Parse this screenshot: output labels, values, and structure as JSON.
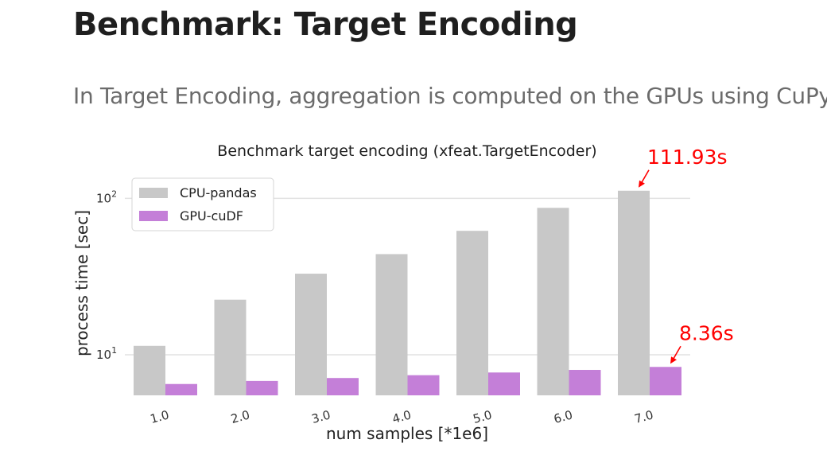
{
  "slide": {
    "title": "Benchmark: Target Encoding",
    "subtitle": "In Target Encoding, aggregation is computed on the GPUs using CuPy."
  },
  "colors": {
    "cpu": "#c8c8c8",
    "gpu": "#c47fd8",
    "annotation": "#ff0000",
    "grid": "#e2e2e2"
  },
  "chart_data": {
    "type": "bar",
    "title": "Benchmark target encoding (xfeat.TargetEncoder)",
    "xlabel": "num samples [*1e6]",
    "ylabel": "process time [sec]",
    "yscale": "log",
    "ylim": [
      5.5,
      130
    ],
    "yticks": [
      {
        "value": 10,
        "base": "10",
        "exp": "1"
      },
      {
        "value": 100,
        "base": "10",
        "exp": "2"
      }
    ],
    "grid": true,
    "legend_position": "top-left",
    "categories": [
      "1.0",
      "2.0",
      "3.0",
      "4.0",
      "5.0",
      "6.0",
      "7.0"
    ],
    "series": [
      {
        "name": "CPU-pandas",
        "values": [
          11.4,
          22.5,
          33.0,
          44.0,
          62.0,
          87.0,
          111.93
        ]
      },
      {
        "name": "GPU-cuDF",
        "values": [
          6.5,
          6.8,
          7.1,
          7.4,
          7.7,
          8.0,
          8.36
        ]
      }
    ],
    "annotations": [
      {
        "text": "111.93s",
        "series": 0,
        "category": 6
      },
      {
        "text": "8.36s",
        "series": 1,
        "category": 6
      }
    ]
  }
}
